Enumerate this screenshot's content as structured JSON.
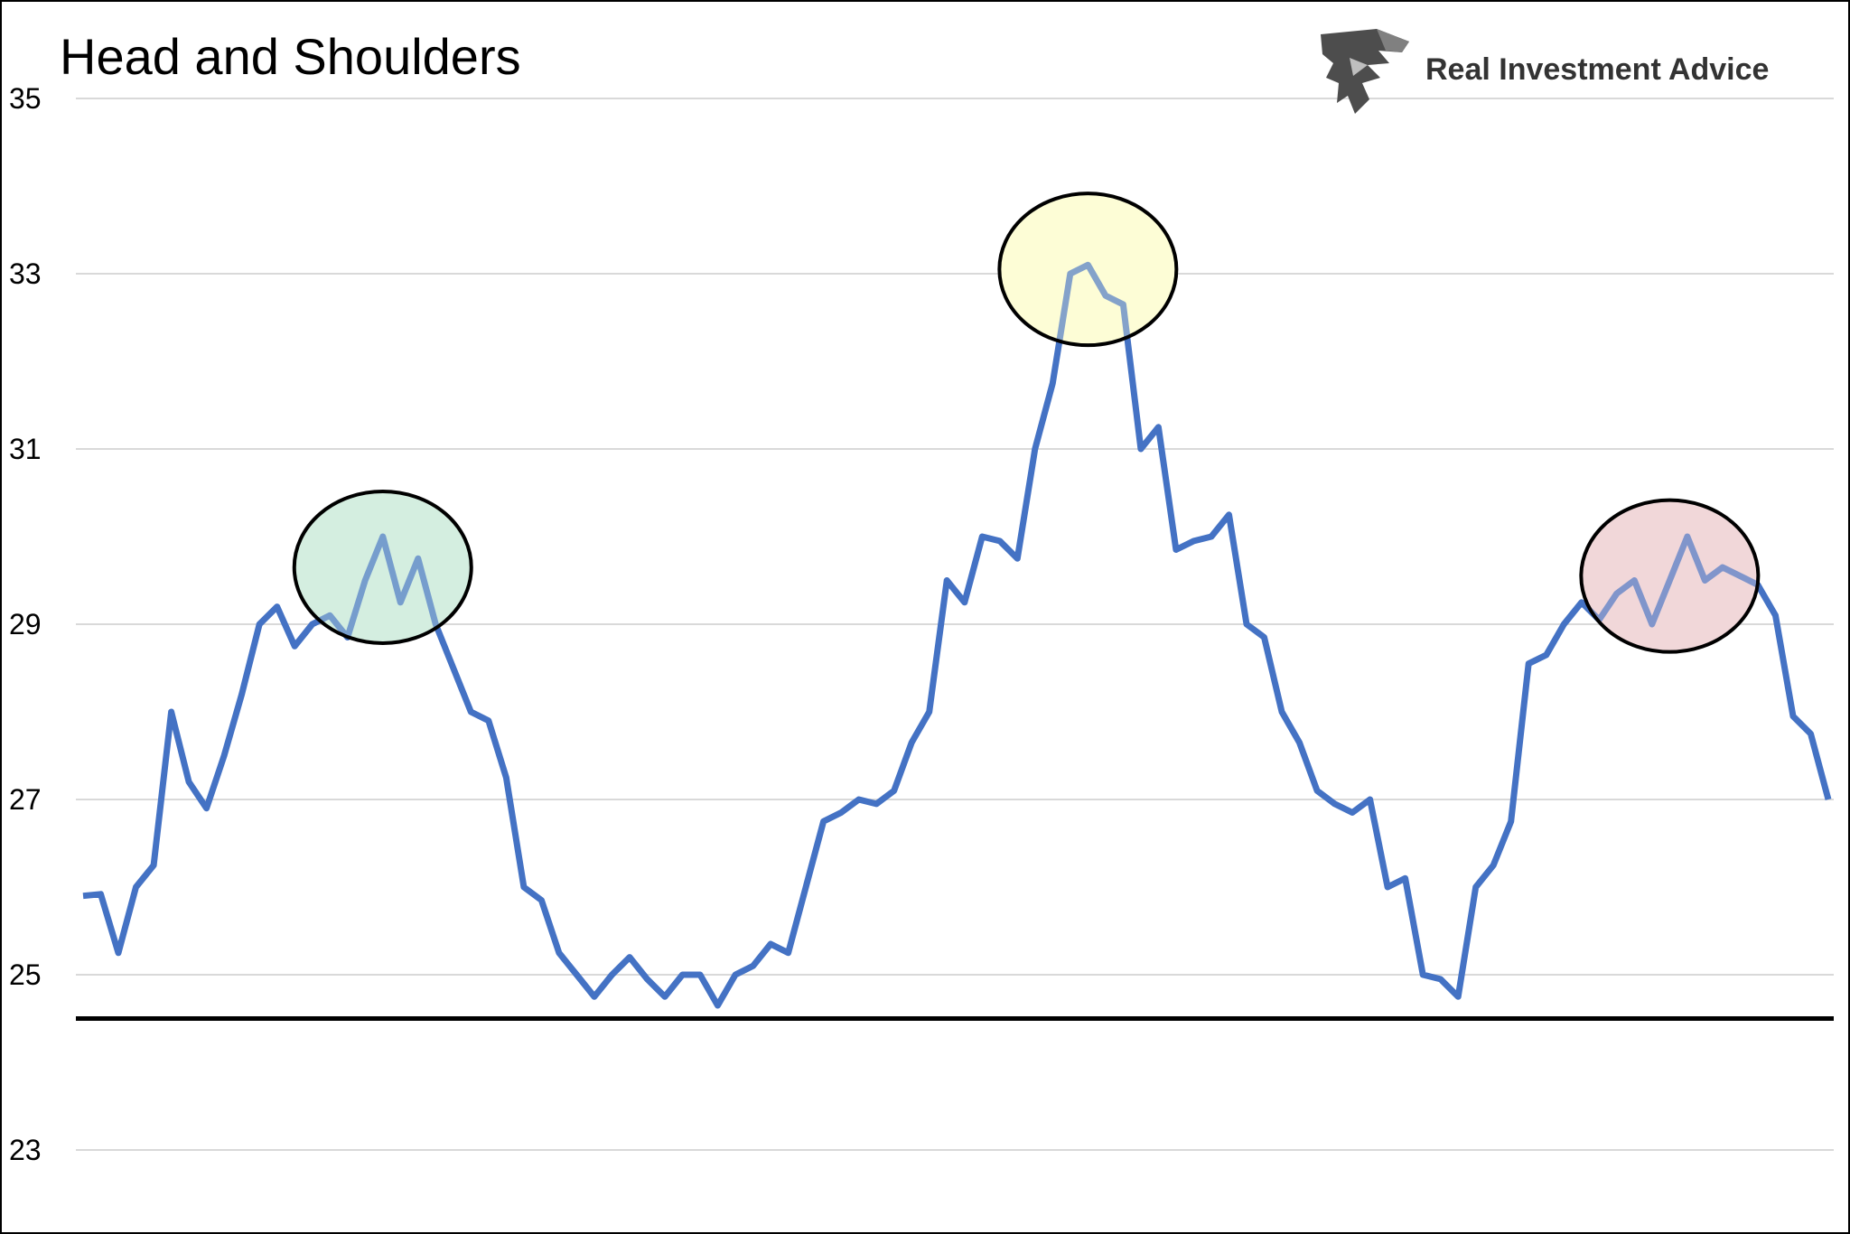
{
  "brand": {
    "name": "Real Investment Advice",
    "logo_icon": "eagle-head-icon"
  },
  "chart_data": {
    "type": "line",
    "title": "Head and Shoulders",
    "xlabel": "",
    "ylabel": "",
    "ylim": [
      22,
      35.5
    ],
    "yticks": [
      23,
      25,
      27,
      29,
      31,
      33,
      35
    ],
    "grid": true,
    "legend": "none",
    "line_color": "#4472c4",
    "series": [
      {
        "values": [
          25.9,
          25.92,
          25.25,
          26.0,
          26.25,
          28.0,
          27.2,
          26.9,
          27.5,
          28.2,
          29.0,
          29.2,
          28.75,
          29.0,
          29.1,
          28.85,
          29.5,
          30.0,
          29.25,
          29.75,
          29.0,
          28.5,
          28.0,
          27.9,
          27.25,
          26.0,
          25.85,
          25.25,
          25.0,
          24.75,
          25.0,
          25.2,
          24.95,
          24.75,
          25.0,
          25.0,
          24.65,
          25.0,
          25.1,
          25.35,
          25.25,
          26.0,
          26.75,
          26.85,
          27.0,
          26.95,
          27.1,
          27.65,
          28.0,
          29.5,
          29.25,
          30.0,
          29.95,
          29.75,
          31.0,
          31.75,
          33.0,
          33.1,
          32.75,
          32.65,
          31.0,
          31.25,
          29.85,
          29.95,
          30.0,
          30.25,
          29.0,
          28.85,
          28.0,
          27.65,
          27.1,
          26.95,
          26.85,
          27.0,
          26.0,
          26.1,
          25.0,
          24.95,
          24.75,
          26.0,
          26.25,
          26.75,
          28.55,
          28.65,
          29.0,
          29.25,
          29.05,
          29.35,
          29.5,
          29.0,
          29.5,
          30.0,
          29.5,
          29.65,
          29.55,
          29.45,
          29.1,
          27.95,
          27.75,
          27.0
        ]
      }
    ],
    "support_level": 24.5,
    "support_color": "#000000",
    "highlights": [
      {
        "name": "left-shoulder",
        "center_index": 17,
        "center_value": 29.65,
        "color": "#d4efe0"
      },
      {
        "name": "head",
        "center_index": 57,
        "center_value": 33.05,
        "color": "#fdfdd6"
      },
      {
        "name": "right-shoulder",
        "center_index": 90,
        "center_value": 29.55,
        "color": "#f2d7d9"
      }
    ]
  }
}
